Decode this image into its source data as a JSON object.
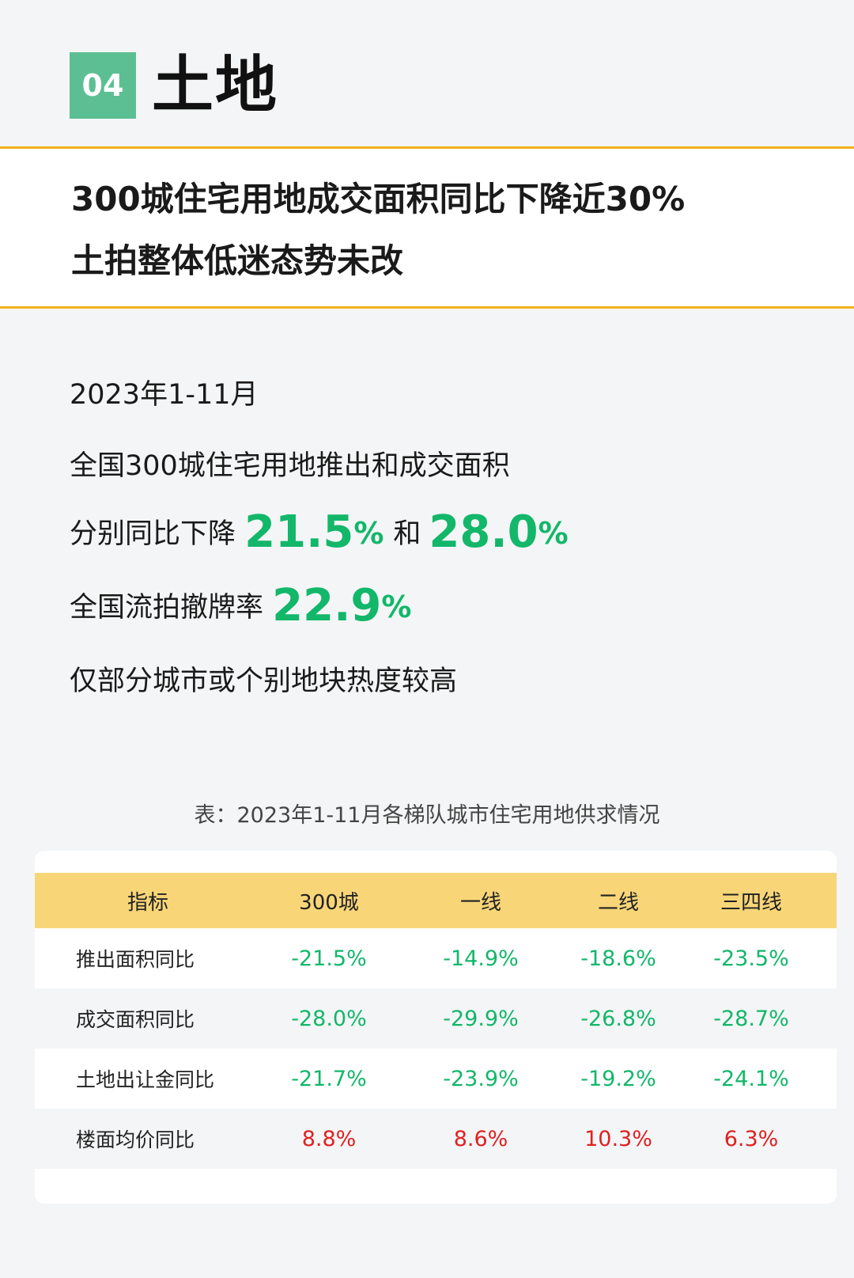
{
  "header": {
    "number": "04",
    "title": "土地"
  },
  "headline": {
    "line1": "300城住宅用地成交面积同比下降近30%",
    "line2": "土拍整体低迷态势未改"
  },
  "summary": {
    "period": "2023年1-11月",
    "line1": "全国300城住宅用地推出和成交面积",
    "line2_prefix": "分别同比下降",
    "line2_value1": "21.5",
    "line2_pct1": "%",
    "line2_connector": "和",
    "line2_value2": "28.0",
    "line2_pct2": "%",
    "line3_prefix": "全国流拍撤牌率",
    "line3_value": "22.9",
    "line3_pct": "%",
    "line4": "仅部分城市或个别地块热度较高"
  },
  "table": {
    "caption": "表：2023年1-11月各梯队城市住宅用地供求情况",
    "headers": [
      "指标",
      "300城",
      "一线",
      "二线",
      "三四线"
    ],
    "rows": [
      {
        "label": "推出面积同比",
        "values": [
          "-21.5%",
          "-14.9%",
          "-18.6%",
          "-23.5%"
        ]
      },
      {
        "label": "成交面积同比",
        "values": [
          "-28.0%",
          "-29.9%",
          "-26.8%",
          "-28.7%"
        ]
      },
      {
        "label": "土地出让金同比",
        "values": [
          "-21.7%",
          "-23.9%",
          "-19.2%",
          "-24.1%"
        ]
      },
      {
        "label": "楼面均价同比",
        "values": [
          "8.8%",
          "8.6%",
          "10.3%",
          "6.3%"
        ]
      }
    ],
    "colors": {
      "negative": "#12b76a",
      "positive": "#e02020",
      "header_bg": "#f8d678"
    }
  }
}
